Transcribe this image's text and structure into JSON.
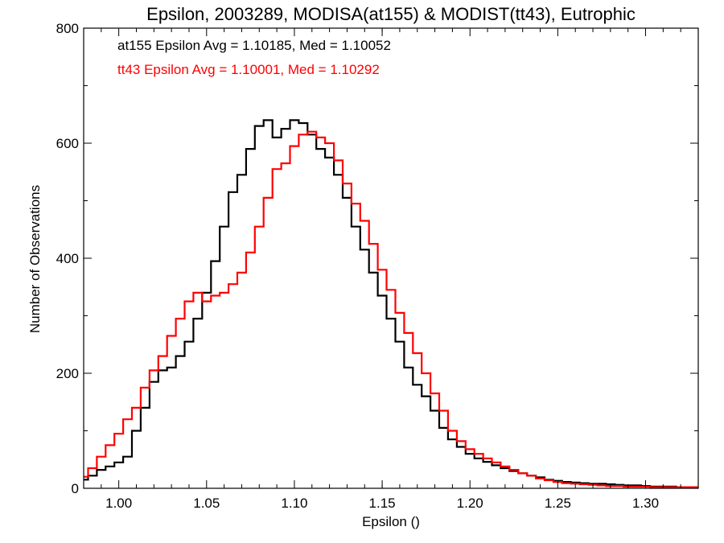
{
  "chart_data": {
    "type": "line",
    "title": "Epsilon, 2003289, MODISA(at155) & MODIST(tt43), Eutrophic",
    "xlabel": "Epsilon ()",
    "ylabel": "Number of Observations",
    "xlim": [
      0.98,
      1.33
    ],
    "ylim": [
      0,
      800
    ],
    "x_ticks": [
      1.0,
      1.05,
      1.1,
      1.15,
      1.2,
      1.25,
      1.3
    ],
    "x_tick_labels": [
      "1.00",
      "1.05",
      "1.10",
      "1.15",
      "1.20",
      "1.25",
      "1.30"
    ],
    "y_ticks": [
      0,
      200,
      400,
      600,
      800
    ],
    "y_tick_labels": [
      "0",
      "200",
      "400",
      "600",
      "800"
    ],
    "grid": false,
    "annotations": [
      {
        "text": "at155 Epsilon Avg = 1.10185, Med = 1.10052",
        "color": "#000000"
      },
      {
        "text": "tt43 Epsilon Avg = 1.10001, Med = 1.10292",
        "color": "#ff0000"
      }
    ],
    "series": [
      {
        "color": "#000000",
        "x": [
          0.98,
          0.985,
          0.99,
          0.995,
          1.0,
          1.005,
          1.01,
          1.015,
          1.02,
          1.025,
          1.03,
          1.035,
          1.04,
          1.045,
          1.05,
          1.055,
          1.06,
          1.065,
          1.07,
          1.075,
          1.08,
          1.085,
          1.09,
          1.095,
          1.1,
          1.105,
          1.11,
          1.115,
          1.12,
          1.125,
          1.13,
          1.135,
          1.14,
          1.145,
          1.15,
          1.155,
          1.16,
          1.165,
          1.17,
          1.175,
          1.18,
          1.185,
          1.19,
          1.195,
          1.2,
          1.205,
          1.21,
          1.215,
          1.22,
          1.225,
          1.23,
          1.235,
          1.24,
          1.245,
          1.25,
          1.255,
          1.26,
          1.265,
          1.27,
          1.275,
          1.28,
          1.285,
          1.29,
          1.295,
          1.3,
          1.305,
          1.31,
          1.315,
          1.32,
          1.325,
          1.33
        ],
        "y": [
          15,
          22,
          32,
          38,
          45,
          55,
          100,
          140,
          185,
          205,
          210,
          230,
          255,
          295,
          340,
          395,
          455,
          515,
          545,
          590,
          630,
          640,
          610,
          625,
          640,
          635,
          615,
          590,
          575,
          545,
          505,
          455,
          415,
          375,
          335,
          295,
          255,
          210,
          180,
          160,
          135,
          105,
          85,
          72,
          60,
          52,
          46,
          40,
          35,
          30,
          26,
          22,
          19,
          15,
          13,
          11,
          10,
          9,
          8,
          8,
          7,
          6,
          5,
          5,
          4,
          3,
          3,
          3,
          2,
          2,
          2
        ]
      },
      {
        "color": "#ff0000",
        "x": [
          0.98,
          0.985,
          0.99,
          0.995,
          1.0,
          1.005,
          1.01,
          1.015,
          1.02,
          1.025,
          1.03,
          1.035,
          1.04,
          1.045,
          1.05,
          1.055,
          1.06,
          1.065,
          1.07,
          1.075,
          1.08,
          1.085,
          1.09,
          1.095,
          1.1,
          1.105,
          1.11,
          1.115,
          1.12,
          1.125,
          1.13,
          1.135,
          1.14,
          1.145,
          1.15,
          1.155,
          1.16,
          1.165,
          1.17,
          1.175,
          1.18,
          1.185,
          1.19,
          1.195,
          1.2,
          1.205,
          1.21,
          1.215,
          1.22,
          1.225,
          1.23,
          1.235,
          1.24,
          1.245,
          1.25,
          1.255,
          1.26,
          1.265,
          1.27,
          1.275,
          1.28,
          1.285,
          1.29,
          1.295,
          1.3,
          1.305,
          1.31,
          1.315,
          1.32,
          1.325,
          1.33
        ],
        "y": [
          20,
          35,
          55,
          75,
          95,
          120,
          140,
          175,
          205,
          230,
          265,
          295,
          325,
          340,
          325,
          335,
          340,
          355,
          375,
          410,
          455,
          505,
          555,
          565,
          595,
          615,
          620,
          610,
          600,
          570,
          530,
          495,
          465,
          425,
          380,
          345,
          305,
          270,
          235,
          200,
          165,
          135,
          100,
          82,
          68,
          60,
          52,
          45,
          38,
          32,
          26,
          22,
          17,
          14,
          11,
          9,
          8,
          7,
          6,
          5,
          4,
          4,
          3,
          3,
          3,
          2,
          2,
          2,
          2,
          2,
          2
        ]
      }
    ]
  }
}
